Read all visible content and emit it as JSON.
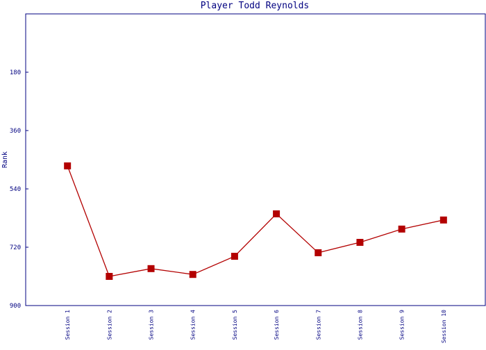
{
  "chart_data": {
    "type": "line",
    "title": "Player Todd Reynolds",
    "y_label": "Rank",
    "categories": [
      "Session 1",
      "Session 2",
      "Session 3",
      "Session 4",
      "Session 5",
      "Session 6",
      "Session 7",
      "Session 8",
      "Session 9",
      "Session 10"
    ],
    "series": [
      {
        "name": "Rank",
        "color": "#b30000",
        "values": [
          469,
          810,
          786,
          804,
          748,
          617,
          737,
          705,
          664,
          636
        ]
      }
    ],
    "ylim": [
      900,
      0
    ],
    "yticks": [
      180,
      360,
      540,
      720,
      900
    ],
    "grid": false
  }
}
